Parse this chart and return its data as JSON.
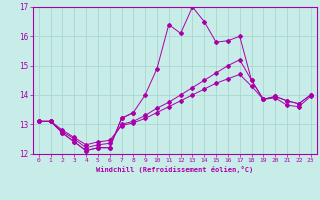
{
  "xlabel": "Windchill (Refroidissement éolien,°C)",
  "background_color": "#c8ece8",
  "grid_color": "#a8d8d0",
  "line_color": "#aa00aa",
  "xlim": [
    -0.5,
    23.5
  ],
  "ylim": [
    12,
    17
  ],
  "yticks": [
    12,
    13,
    14,
    15,
    16,
    17
  ],
  "xticks": [
    0,
    1,
    2,
    3,
    4,
    5,
    6,
    7,
    8,
    9,
    10,
    11,
    12,
    13,
    14,
    15,
    16,
    17,
    18,
    19,
    20,
    21,
    22,
    23
  ],
  "s1_x": [
    0,
    1,
    2,
    3,
    4,
    5,
    6,
    7,
    8
  ],
  "s1_y": [
    13.1,
    13.1,
    12.7,
    12.4,
    12.1,
    12.2,
    12.2,
    13.2,
    13.4
  ],
  "s2_x": [
    0,
    1,
    2,
    3,
    4,
    5,
    6,
    7,
    8,
    9,
    10,
    11,
    12,
    13,
    14,
    15,
    16,
    17,
    18,
    19,
    20,
    21,
    22,
    23
  ],
  "s2_y": [
    13.1,
    13.1,
    12.7,
    12.4,
    12.1,
    12.2,
    12.2,
    13.2,
    13.4,
    14.0,
    14.9,
    16.4,
    16.1,
    17.0,
    16.5,
    15.8,
    15.85,
    16.0,
    14.5,
    13.85,
    13.9,
    13.65,
    13.6,
    13.95
  ],
  "s3_x": [
    0,
    1,
    2,
    3,
    4,
    5,
    6,
    7,
    8,
    9,
    10,
    11,
    12,
    13,
    14,
    15,
    16,
    17,
    18,
    19,
    20,
    21,
    22,
    23
  ],
  "s3_y": [
    13.1,
    13.1,
    12.75,
    12.5,
    12.2,
    12.3,
    12.35,
    13.0,
    13.1,
    13.3,
    13.55,
    13.75,
    14.0,
    14.25,
    14.5,
    14.75,
    15.0,
    15.2,
    14.5,
    13.85,
    13.95,
    13.8,
    13.7,
    14.0
  ],
  "s4_x": [
    0,
    1,
    2,
    3,
    4,
    5,
    6,
    7,
    8,
    9,
    10,
    11,
    12,
    13,
    14,
    15,
    16,
    17,
    18,
    19,
    20,
    21,
    22,
    23
  ],
  "s4_y": [
    13.1,
    13.1,
    12.8,
    12.55,
    12.3,
    12.4,
    12.45,
    12.95,
    13.05,
    13.2,
    13.4,
    13.6,
    13.8,
    14.0,
    14.2,
    14.4,
    14.55,
    14.7,
    14.3,
    13.85,
    13.95,
    13.8,
    13.7,
    14.0
  ]
}
